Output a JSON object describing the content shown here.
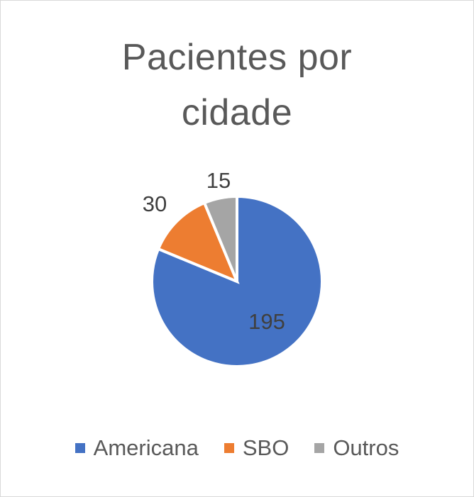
{
  "chart_data": {
    "type": "pie",
    "title_lines": [
      "Pacientes por",
      "cidade"
    ],
    "categories": [
      "Americana",
      "SBO",
      "Outros"
    ],
    "values": [
      195,
      30,
      15
    ],
    "colors": [
      "#4472C4",
      "#ED7D31",
      "#A5A5A5"
    ],
    "data_labels": [
      "195",
      "30",
      "15"
    ],
    "legend_position": "bottom",
    "start_angle_deg": 0,
    "direction": "clockwise"
  }
}
